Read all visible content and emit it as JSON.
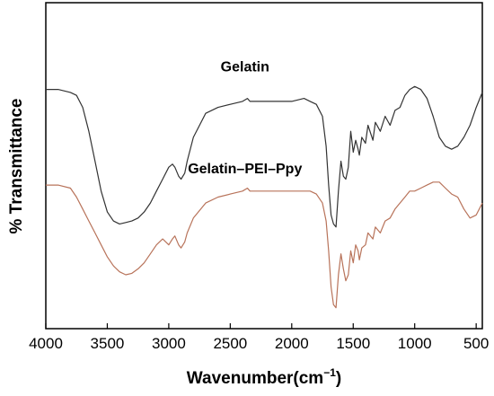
{
  "chart_data": {
    "type": "line",
    "xlabel": "Wavenumber(cm",
    "xlabel_superscript": "−1",
    "xlabel_close": ")",
    "ylabel": "% Transmittance",
    "xlim": [
      4000,
      450
    ],
    "x_reversed": true,
    "x_ticks": [
      "4000",
      "3500",
      "3000",
      "2500",
      "2000",
      "1500",
      "1000",
      "500"
    ],
    "y_ticks_shown": false,
    "grid": false,
    "legend": "none",
    "series": [
      {
        "name": "Gelatin",
        "color": "#333333",
        "x": [
          4000,
          3900,
          3800,
          3750,
          3700,
          3650,
          3600,
          3550,
          3500,
          3450,
          3400,
          3350,
          3300,
          3250,
          3200,
          3150,
          3100,
          3050,
          3000,
          2970,
          2950,
          2920,
          2900,
          2870,
          2850,
          2800,
          2700,
          2600,
          2500,
          2400,
          2360,
          2340,
          2300,
          2200,
          2100,
          2000,
          1900,
          1850,
          1800,
          1750,
          1720,
          1700,
          1680,
          1660,
          1640,
          1620,
          1600,
          1580,
          1560,
          1540,
          1520,
          1500,
          1480,
          1460,
          1450,
          1430,
          1400,
          1380,
          1340,
          1320,
          1280,
          1240,
          1200,
          1160,
          1120,
          1080,
          1040,
          1000,
          950,
          900,
          850,
          800,
          750,
          700,
          650,
          600,
          550,
          500,
          450
        ],
        "y": [
          74,
          74,
          73,
          72,
          68,
          60,
          50,
          40,
          33,
          30,
          29,
          29.5,
          30,
          31,
          33,
          36,
          40,
          44,
          48,
          49,
          48,
          45,
          44,
          46,
          50,
          58,
          66,
          68,
          69,
          70,
          71,
          70,
          70,
          70,
          70,
          70,
          71,
          70,
          69,
          65,
          55,
          42,
          32,
          29,
          28,
          40,
          50,
          45,
          44,
          48,
          60,
          53,
          57,
          54,
          52,
          58,
          56,
          62,
          57,
          63,
          60,
          65,
          62,
          67,
          68,
          72,
          74,
          75,
          74,
          71,
          65,
          58,
          55,
          54,
          55,
          58,
          62,
          68,
          73
        ]
      },
      {
        "name": "Gelatin–PEI–Ppy",
        "color": "#b8735a",
        "x": [
          4000,
          3900,
          3800,
          3750,
          3700,
          3650,
          3600,
          3550,
          3500,
          3450,
          3400,
          3350,
          3300,
          3250,
          3200,
          3150,
          3100,
          3050,
          3000,
          2970,
          2950,
          2920,
          2900,
          2870,
          2850,
          2800,
          2700,
          2600,
          2500,
          2400,
          2360,
          2340,
          2300,
          2200,
          2100,
          2000,
          1900,
          1850,
          1800,
          1750,
          1720,
          1700,
          1680,
          1660,
          1640,
          1620,
          1600,
          1580,
          1560,
          1540,
          1520,
          1500,
          1480,
          1460,
          1450,
          1430,
          1400,
          1380,
          1340,
          1320,
          1280,
          1240,
          1200,
          1160,
          1120,
          1080,
          1040,
          1000,
          950,
          900,
          850,
          800,
          750,
          700,
          650,
          600,
          550,
          500,
          450
        ],
        "y": [
          42,
          42,
          41,
          38,
          34,
          30,
          26,
          22,
          18,
          15,
          13,
          12,
          12.5,
          14,
          16,
          19,
          22,
          24,
          22,
          24,
          25,
          22,
          21,
          23,
          26,
          31,
          36,
          38,
          39,
          40,
          41,
          40,
          40,
          40,
          40,
          40,
          40,
          40,
          39,
          36,
          30,
          20,
          8,
          2,
          1,
          12,
          19,
          14,
          10,
          12,
          20,
          16,
          22,
          20,
          17,
          21,
          22,
          26,
          24,
          28,
          26,
          30,
          31,
          34,
          36,
          38,
          40,
          40,
          41,
          42,
          43,
          43,
          41,
          39,
          38,
          34,
          31,
          32,
          36
        ]
      }
    ],
    "annotations": [
      {
        "text": "Gelatin",
        "x": 2380,
        "y": 80
      },
      {
        "text": "Gelatin–PEI–Ppy",
        "x": 2380,
        "y": 46
      }
    ]
  }
}
